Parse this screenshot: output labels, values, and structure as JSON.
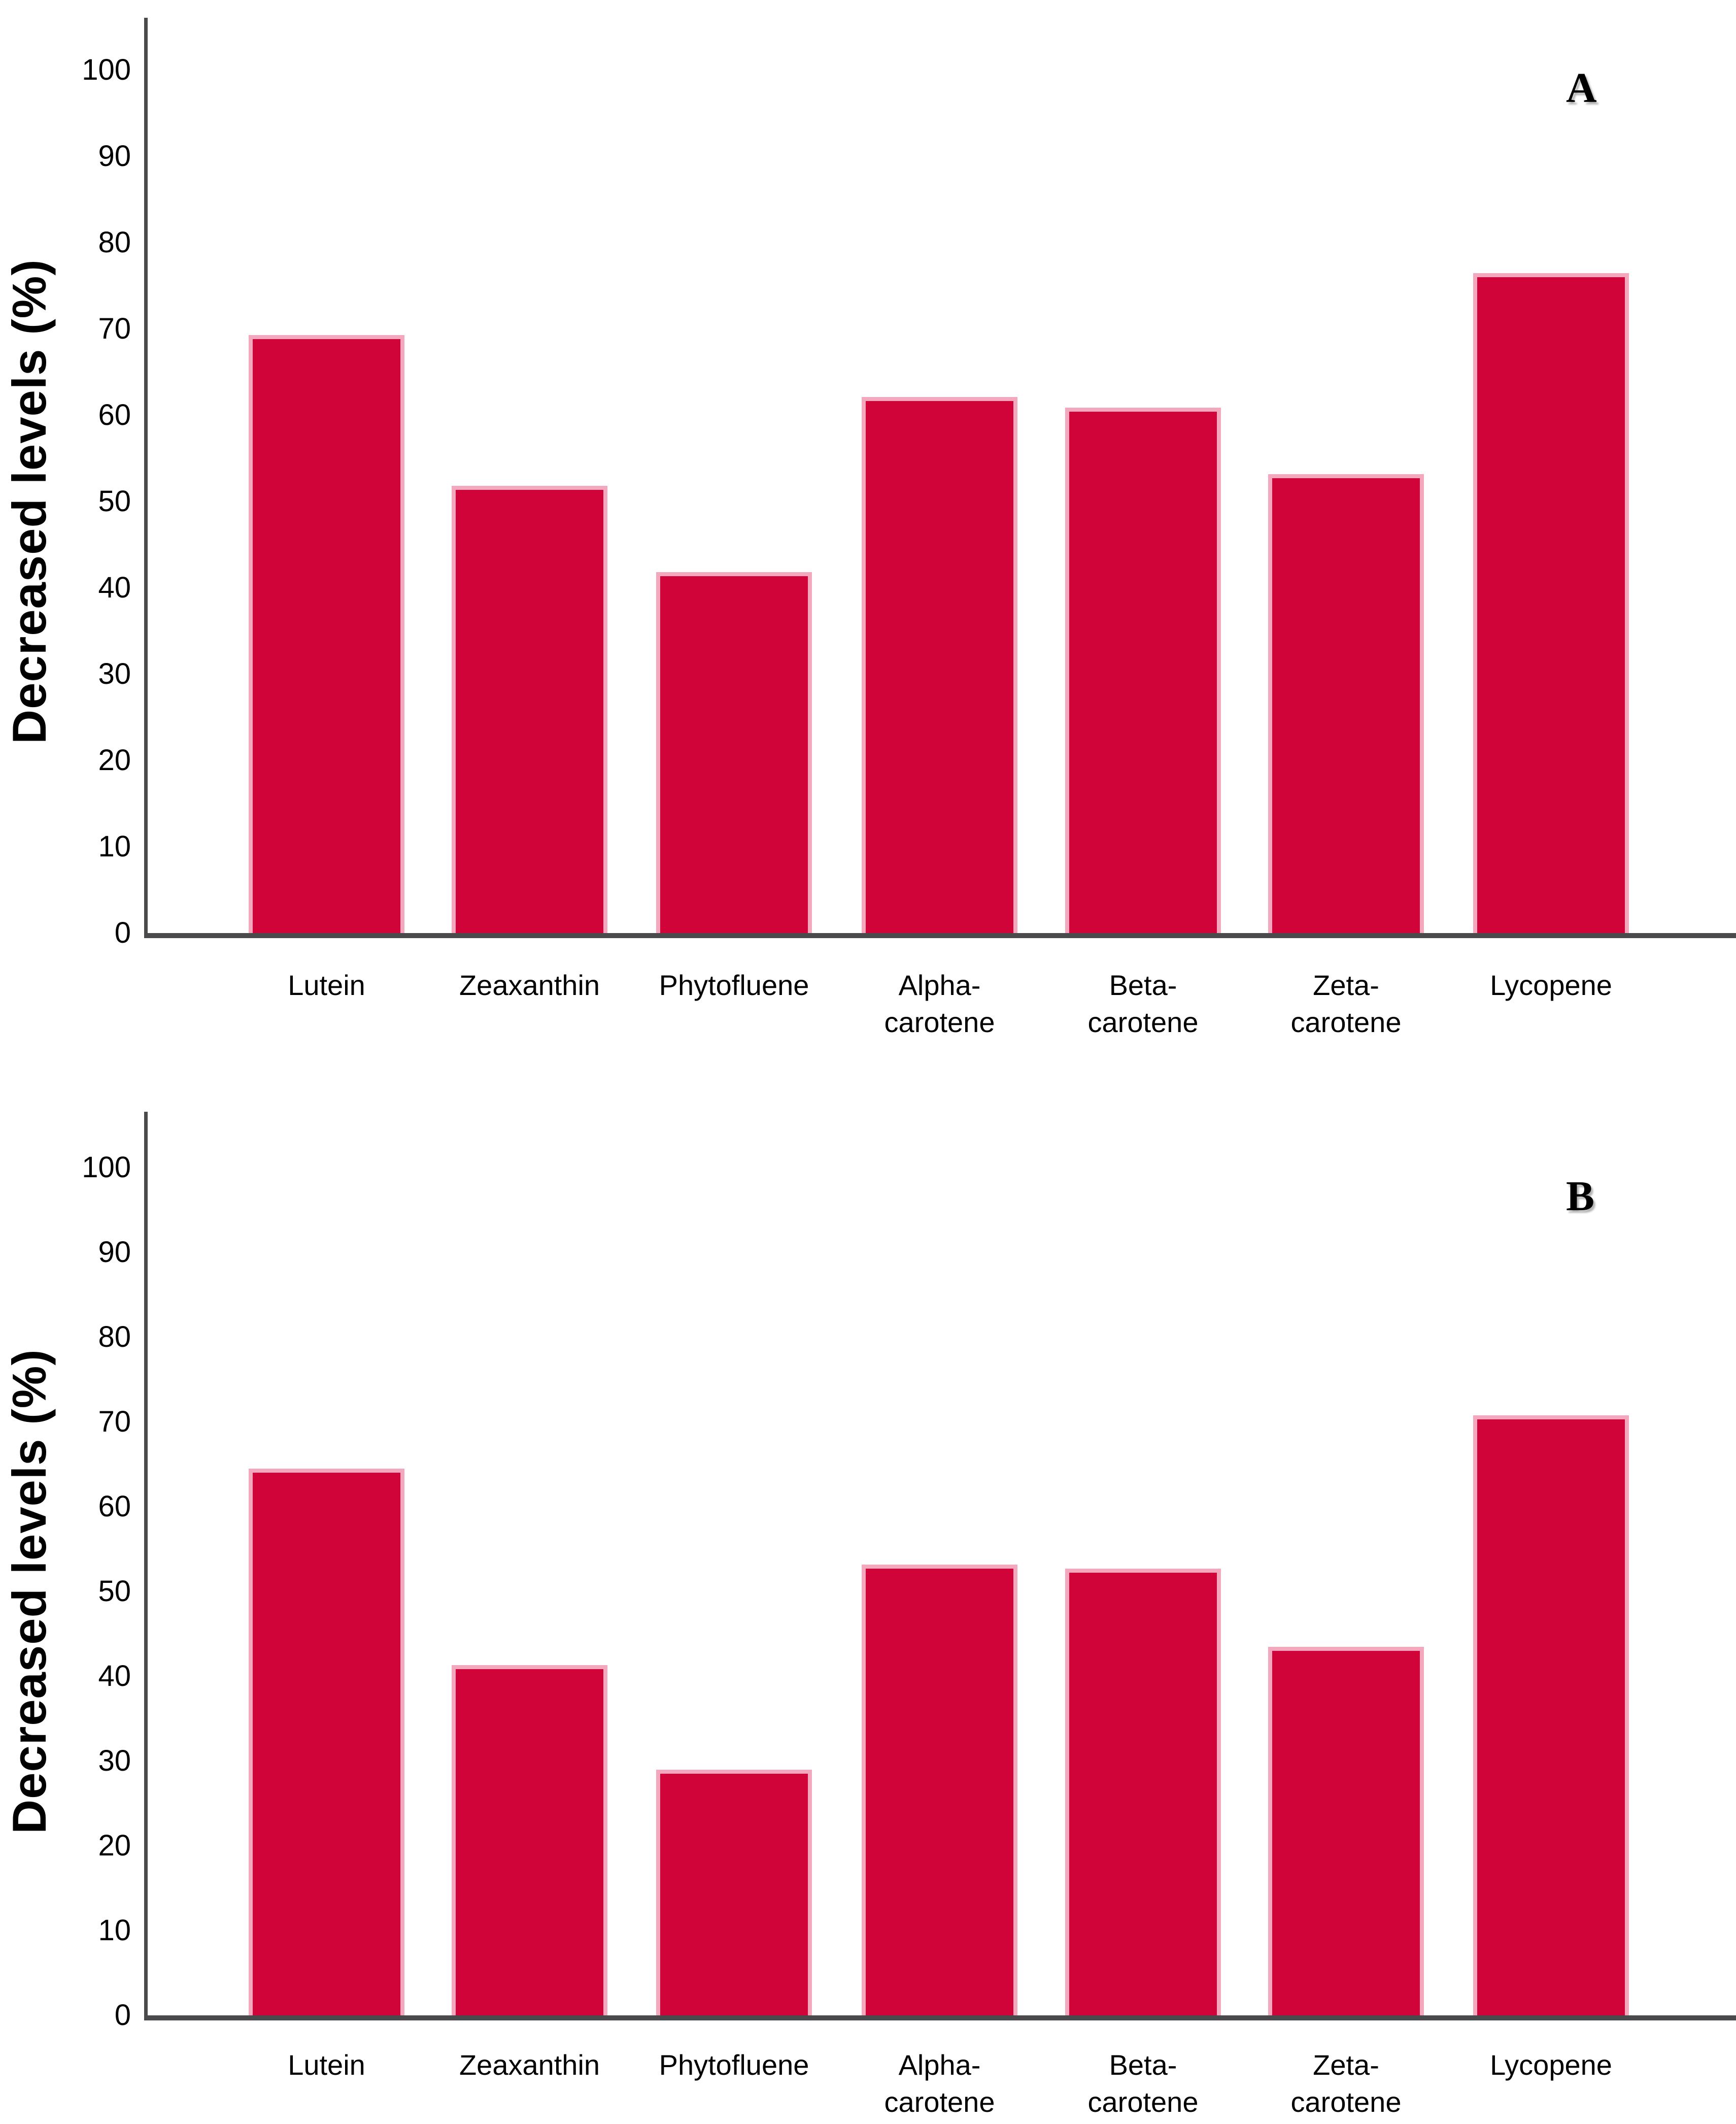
{
  "colors": {
    "bar_fill": "#d10439",
    "bar_border": "#f3a8be",
    "axis": "#4a4a4d",
    "background": "#ffffff",
    "text": "#000000"
  },
  "chart_data": [
    {
      "type": "bar",
      "panel_label": "A",
      "title": "",
      "xlabel": "",
      "ylabel": "Decreased levels (%)",
      "ylim": [
        0,
        100
      ],
      "yticks": [
        0,
        10,
        20,
        30,
        40,
        50,
        60,
        70,
        80,
        90,
        100
      ],
      "grid": false,
      "legend": "none",
      "categories": [
        "Lutein",
        "Zeaxanthin",
        "Phytofluene",
        "Alpha-\ncarotene",
        "Beta-\ncarotene",
        "Zeta-\ncarotene",
        "Lycopene"
      ],
      "values": [
        69.3,
        51.8,
        41.8,
        62.1,
        60.9,
        53.2,
        76.5
      ]
    },
    {
      "type": "bar",
      "panel_label": "B",
      "title": "",
      "xlabel": "",
      "ylabel": "Decreased levels (%)",
      "ylim": [
        0,
        100
      ],
      "yticks": [
        0,
        10,
        20,
        30,
        40,
        50,
        60,
        70,
        80,
        90,
        100
      ],
      "grid": false,
      "legend": "none",
      "categories": [
        "Lutein",
        "Zeaxanthin",
        "Phytofluene",
        "Alpha-\ncarotene",
        "Beta-\ncarotene",
        "Zeta-\ncarotene",
        "Lycopene"
      ],
      "values": [
        64.5,
        41.3,
        29.0,
        53.2,
        52.7,
        43.5,
        70.8
      ]
    }
  ]
}
